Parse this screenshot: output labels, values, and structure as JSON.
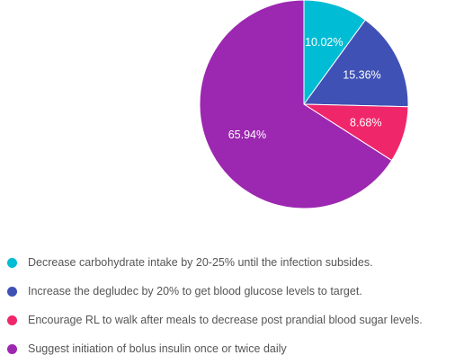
{
  "chart_data": {
    "type": "pie",
    "title": "",
    "legend_position": "bottom",
    "slices": [
      {
        "label": "Decrease carbohydrate intake by 20-25% until the infection subsides.",
        "value": 10.02,
        "value_label": "10.02%",
        "color": "#00BCD4"
      },
      {
        "label": "Increase the degludec by 20% to get blood glucose levels to target.",
        "value": 15.36,
        "value_label": "15.36%",
        "color": "#3F51B5"
      },
      {
        "label": "Encourage RL to walk after meals to decrease post prandial blood sugar levels.",
        "value": 8.68,
        "value_label": "8.68%",
        "color": "#F0266B"
      },
      {
        "label": "Suggest initiation of bolus insulin once or twice daily",
        "value": 65.94,
        "value_label": "65.94%",
        "color": "#9C27B0"
      }
    ]
  }
}
